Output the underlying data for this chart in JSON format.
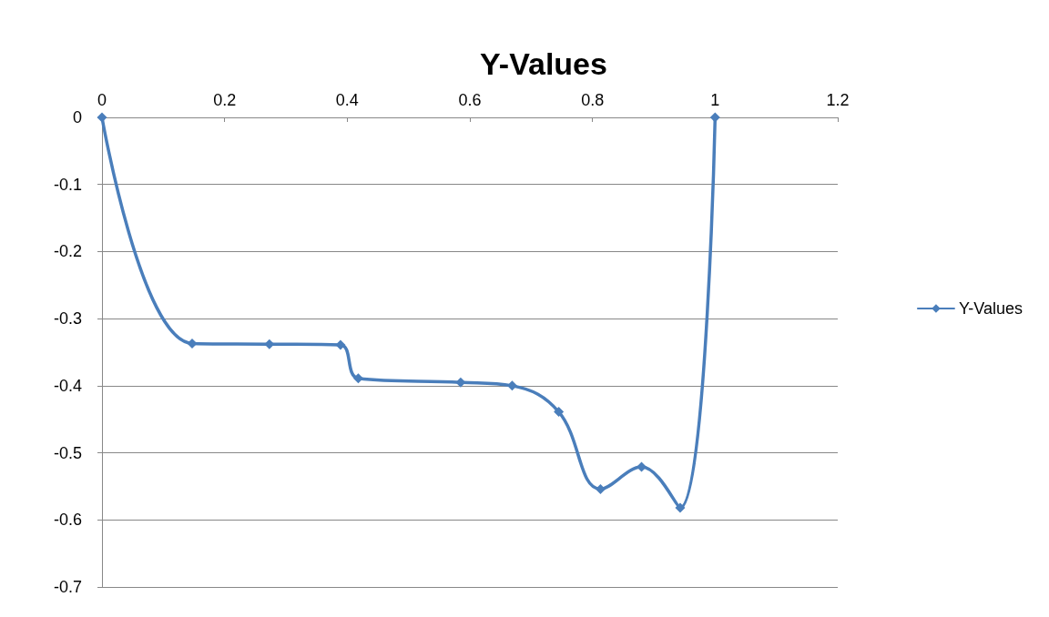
{
  "chart_data": {
    "type": "line",
    "title": "Y-Values",
    "x": [
      0,
      0.147,
      0.273,
      0.389,
      0.418,
      0.585,
      0.669,
      0.745,
      0.813,
      0.88,
      0.943,
      1
    ],
    "series": [
      {
        "name": "Y-Values",
        "color": "#4a7ebb",
        "values": [
          0,
          -0.337,
          -0.338,
          -0.339,
          -0.389,
          -0.395,
          -0.4,
          -0.439,
          -0.554,
          -0.521,
          -0.582,
          0
        ]
      }
    ],
    "xlim": [
      0,
      1.2
    ],
    "xticks": [
      0,
      0.2,
      0.4,
      0.6,
      0.8,
      1,
      1.2
    ],
    "ylim": [
      -0.7,
      0
    ],
    "yticks": [
      -0.7,
      -0.6,
      -0.5,
      -0.4,
      -0.3,
      -0.2,
      -0.1,
      0
    ],
    "grid": "y",
    "legend": "right",
    "marker": "diamond",
    "line_style": "solid"
  }
}
